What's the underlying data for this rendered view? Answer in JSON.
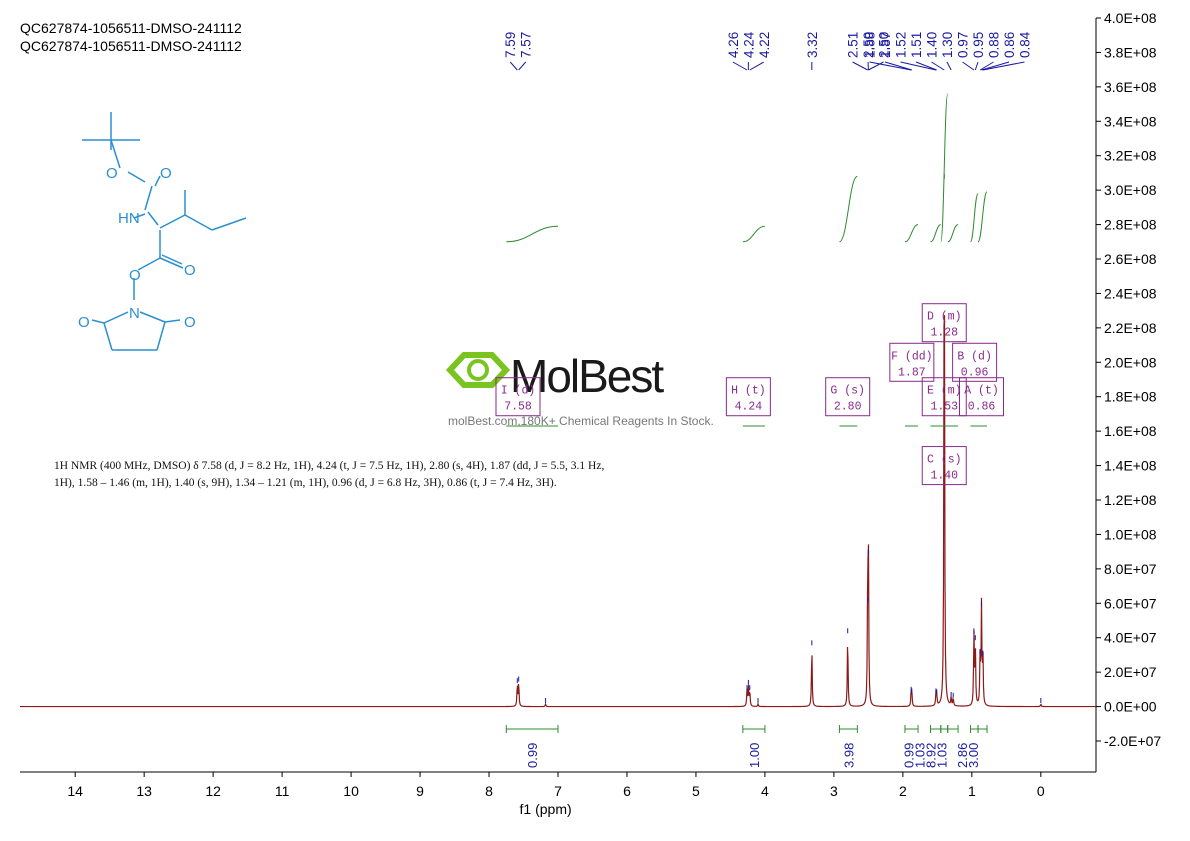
{
  "header": {
    "line1": "QC627874-1056511-DMSO-241112",
    "line2": "QC627874-1056511-DMSO-241112"
  },
  "description": {
    "text": "1H NMR (400 MHz, DMSO) δ 7.58 (d, J = 8.2 Hz, 1H), 4.24 (t, J = 7.5 Hz, 1H), 2.80 (s, 4H), 1.87 (dd, J = 5.5, 3.1 Hz, 1H), 1.58 – 1.46 (m, 1H), 1.40 (s, 9H), 1.34 – 1.21 (m, 1H), 0.96 (d, J = 6.8 Hz, 3H), 0.86 (t, J = 7.4 Hz, 3H)."
  },
  "watermark": {
    "brand": "MolBest",
    "url": "molBest.com,180K+ Chemical Reagents In Stock."
  },
  "structure": {
    "atom_labels": [
      "O",
      "O",
      "HN",
      "O",
      "O",
      "O",
      "N",
      "O"
    ]
  },
  "colors": {
    "spectrum": "#8b1a1a",
    "integral": "#2e8b2e",
    "peak_label": "#1a1aa0",
    "multiplet_box": "#8a2a8a",
    "structure": "#2a8fd0"
  },
  "chart_data": {
    "type": "line",
    "title": "",
    "xlabel": "f1 (ppm)",
    "ylabel": "",
    "x_reversed": true,
    "xlim": [
      14.8,
      -0.8
    ],
    "ylim": [
      -38000000.0,
      400000000.0
    ],
    "x_ticks": [
      14,
      13,
      12,
      11,
      10,
      9,
      8,
      7,
      6,
      5,
      4,
      3,
      2,
      1,
      0
    ],
    "x_tick_labels": [
      "14",
      "13",
      "12",
      "11",
      "10",
      "9",
      "8",
      "7",
      "6",
      "5",
      "4",
      "3",
      "2",
      "1",
      "0"
    ],
    "y_ticks": [
      -20000000.0,
      0,
      20000000.0,
      40000000.0,
      60000000.0,
      80000000.0,
      100000000.0,
      120000000.0,
      140000000.0,
      160000000.0,
      180000000.0,
      200000000.0,
      220000000.0,
      240000000.0,
      260000000.0,
      280000000.0,
      300000000.0,
      320000000.0,
      340000000.0,
      360000000.0,
      380000000.0,
      400000000.0
    ],
    "y_tick_labels": [
      "-2.0E+07",
      "0.0E+00",
      "2.0E+07",
      "4.0E+07",
      "6.0E+07",
      "8.0E+07",
      "1.0E+08",
      "1.2E+08",
      "1.4E+08",
      "1.6E+08",
      "1.8E+08",
      "2.0E+08",
      "2.2E+08",
      "2.4E+08",
      "2.6E+08",
      "2.8E+08",
      "3.0E+08",
      "3.2E+08",
      "3.4E+08",
      "3.6E+08",
      "3.8E+08",
      "4.0E+08"
    ],
    "peaks": [
      {
        "ppm": 7.59,
        "height": 13000000.0
      },
      {
        "ppm": 7.57,
        "height": 14000000.0
      },
      {
        "ppm": 7.18,
        "height": 1500000.0
      },
      {
        "ppm": 4.26,
        "height": 9000000.0
      },
      {
        "ppm": 4.24,
        "height": 12000000.0
      },
      {
        "ppm": 4.22,
        "height": 9000000.0
      },
      {
        "ppm": 4.1,
        "height": 1500000.0
      },
      {
        "ppm": 3.32,
        "height": 35000000.0
      },
      {
        "ppm": 2.8,
        "height": 42000000.0
      },
      {
        "ppm": 2.51,
        "height": 60000000.0
      },
      {
        "ppm": 2.5,
        "height": 88000000.0
      },
      {
        "ppm": 1.88,
        "height": 8000000.0
      },
      {
        "ppm": 1.87,
        "height": 7000000.0
      },
      {
        "ppm": 1.52,
        "height": 7000000.0
      },
      {
        "ppm": 1.51,
        "height": 6500000.0
      },
      {
        "ppm": 1.4,
        "height": 306000000.0
      },
      {
        "ppm": 1.3,
        "height": 5000000.0
      },
      {
        "ppm": 1.27,
        "height": 4500000.0
      },
      {
        "ppm": 0.97,
        "height": 42000000.0
      },
      {
        "ppm": 0.95,
        "height": 38000000.0
      },
      {
        "ppm": 0.88,
        "height": 30000000.0
      },
      {
        "ppm": 0.86,
        "height": 58000000.0
      },
      {
        "ppm": 0.84,
        "height": 29000000.0
      },
      {
        "ppm": 0.0,
        "height": 1500000.0
      }
    ],
    "peak_label_groups": [
      {
        "labels": [
          "7.59",
          "7.57"
        ],
        "ppm": [
          7.59,
          7.57
        ]
      },
      {
        "labels": [
          "4.26",
          "4.24",
          "4.22"
        ],
        "ppm": [
          4.26,
          4.24,
          4.22
        ]
      },
      {
        "labels": [
          "3.32"
        ],
        "ppm": [
          3.32
        ]
      },
      {
        "labels": [
          "2.51",
          "2.50",
          "2.50"
        ],
        "ppm": [
          2.51,
          2.5,
          2.5
        ]
      },
      {
        "labels": [
          "1.88",
          "1.87",
          "1.52",
          "1.51",
          "1.40",
          "1.30",
          "0.97",
          "0.95",
          "0.88",
          "0.86",
          "0.84"
        ],
        "ppm": [
          1.88,
          1.87,
          1.52,
          1.51,
          1.4,
          1.3,
          0.97,
          0.95,
          0.88,
          0.86,
          0.84
        ]
      }
    ],
    "integrals": [
      {
        "from": 7.75,
        "to": 7.0,
        "value": "0.99",
        "curve_y": [
          270000000.0,
          279000000.0
        ]
      },
      {
        "from": 4.32,
        "to": 4.0,
        "value": "1.00",
        "curve_y": [
          270000000.0,
          279000000.0
        ]
      },
      {
        "from": 2.92,
        "to": 2.66,
        "value": "3.98",
        "curve_y": [
          270000000.0,
          308000000.0
        ]
      },
      {
        "from": 1.97,
        "to": 1.78,
        "value": "0.99",
        "curve_y": [
          270000000.0,
          280000000.0
        ]
      },
      {
        "from": 1.6,
        "to": 1.45,
        "value": "1.03",
        "curve_y": [
          270000000.0,
          280000000.0
        ]
      },
      {
        "from": 1.45,
        "to": 1.35,
        "value": "8.92",
        "curve_y": [
          270000000.0,
          356000000.0
        ]
      },
      {
        "from": 1.35,
        "to": 1.2,
        "value": "1.03",
        "curve_y": [
          270000000.0,
          280000000.0
        ]
      },
      {
        "from": 1.02,
        "to": 0.91,
        "value": "2.86",
        "curve_y": [
          270000000.0,
          298000000.0
        ]
      },
      {
        "from": 0.91,
        "to": 0.78,
        "value": "3.00",
        "curve_y": [
          270000000.0,
          299000000.0
        ]
      }
    ],
    "multiplets": [
      {
        "letter": "H (t)",
        "shift": "4.24",
        "ppm": 4.24,
        "range": [
          4.32,
          4.0
        ],
        "label_y": 180000000.0
      },
      {
        "letter": "G (s)",
        "shift": "2.80",
        "ppm": 2.8,
        "range": [
          2.92,
          2.66
        ],
        "label_y": 180000000.0
      },
      {
        "letter": "I (d)",
        "shift": "7.58",
        "ppm": 7.58,
        "range": [
          7.75,
          7.0
        ],
        "label_y": 180000000.0
      },
      {
        "letter": "F (dd)",
        "shift": "1.87",
        "ppm": 1.87,
        "range": [
          1.97,
          1.78
        ],
        "label_y": 200000000.0
      },
      {
        "letter": "D (m)",
        "shift": "1.28",
        "ppm": 1.28,
        "range": [
          1.35,
          1.2
        ],
        "label_y": 223000000.0
      },
      {
        "letter": "B (d)",
        "shift": "0.96",
        "ppm": 0.96,
        "range": [
          1.02,
          0.91
        ],
        "label_y": 200000000.0
      },
      {
        "letter": "E (m)",
        "shift": "1.53",
        "ppm": 1.53,
        "range": [
          1.6,
          1.45
        ],
        "label_y": 180000000.0
      },
      {
        "letter": "A (t)",
        "shift": "0.86",
        "ppm": 0.86,
        "range": [
          0.91,
          0.78
        ],
        "label_y": 180000000.0
      },
      {
        "letter": "C (s)",
        "shift": "1.40",
        "ppm": 1.4,
        "range": [
          1.45,
          1.35
        ],
        "label_y": 140000000.0
      }
    ]
  }
}
